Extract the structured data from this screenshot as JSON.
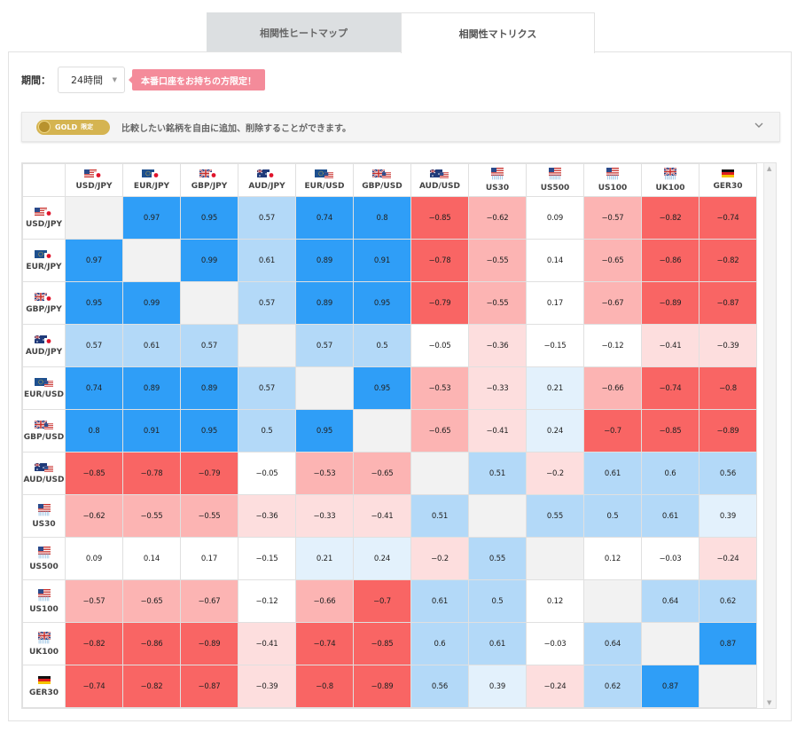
{
  "tabs": [
    {
      "label": "相関性ヒートマップ"
    },
    {
      "label": "相関性マトリクス"
    }
  ],
  "period": {
    "label": "期間：",
    "value": "24時間"
  },
  "real_account_badge": "本番口座をお持ちの方限定！",
  "gold": {
    "badge_text": "GOLD",
    "badge_sub": "限定",
    "message": "比較したい銘柄を自由に追加、削除することができます。"
  },
  "index_flag_sub": "|||||||",
  "symbols": [
    {
      "label": "USD/JPY",
      "flag_type": "pair",
      "flag1": "us",
      "flag2": "jp"
    },
    {
      "label": "EUR/JPY",
      "flag_type": "pair",
      "flag1": "eu",
      "flag2": "jp"
    },
    {
      "label": "GBP/JPY",
      "flag_type": "pair",
      "flag1": "uk",
      "flag2": "jp"
    },
    {
      "label": "AUD/JPY",
      "flag_type": "pair",
      "flag1": "au",
      "flag2": "jp"
    },
    {
      "label": "EUR/USD",
      "flag_type": "pair",
      "flag1": "eu",
      "flag2": "us"
    },
    {
      "label": "GBP/USD",
      "flag_type": "pair",
      "flag1": "uk",
      "flag2": "us"
    },
    {
      "label": "AUD/USD",
      "flag_type": "pair",
      "flag1": "au",
      "flag2": "us"
    },
    {
      "label": "US30",
      "flag_type": "index",
      "flag1": "us"
    },
    {
      "label": "US500",
      "flag_type": "index",
      "flag1": "us"
    },
    {
      "label": "US100",
      "flag_type": "index",
      "flag1": "us"
    },
    {
      "label": "UK100",
      "flag_type": "index",
      "flag1": "uk"
    },
    {
      "label": "GER30",
      "flag_type": "single",
      "flag1": "de"
    }
  ],
  "matrix": [
    [
      null,
      0.97,
      0.95,
      0.57,
      0.74,
      0.8,
      -0.85,
      -0.62,
      0.09,
      -0.57,
      -0.82,
      -0.74
    ],
    [
      0.97,
      null,
      0.99,
      0.61,
      0.89,
      0.91,
      -0.78,
      -0.55,
      0.14,
      -0.65,
      -0.86,
      -0.82
    ],
    [
      0.95,
      0.99,
      null,
      0.57,
      0.89,
      0.95,
      -0.79,
      -0.55,
      0.17,
      -0.67,
      -0.89,
      -0.87
    ],
    [
      0.57,
      0.61,
      0.57,
      null,
      0.57,
      0.5,
      -0.05,
      -0.36,
      -0.15,
      -0.12,
      -0.41,
      -0.39
    ],
    [
      0.74,
      0.89,
      0.89,
      0.57,
      null,
      0.95,
      -0.53,
      -0.33,
      0.21,
      -0.66,
      -0.74,
      -0.8
    ],
    [
      0.8,
      0.91,
      0.95,
      0.5,
      0.95,
      null,
      -0.65,
      -0.41,
      0.24,
      -0.7,
      -0.85,
      -0.89
    ],
    [
      -0.85,
      -0.78,
      -0.79,
      -0.05,
      -0.53,
      -0.65,
      null,
      0.51,
      -0.2,
      0.61,
      0.6,
      0.56
    ],
    [
      -0.62,
      -0.55,
      -0.55,
      -0.36,
      -0.33,
      -0.41,
      0.51,
      null,
      0.55,
      0.5,
      0.61,
      0.39
    ],
    [
      0.09,
      0.14,
      0.17,
      -0.15,
      0.21,
      0.24,
      -0.2,
      0.55,
      null,
      0.12,
      -0.03,
      -0.24
    ],
    [
      -0.57,
      -0.65,
      -0.67,
      -0.12,
      -0.66,
      -0.7,
      0.61,
      0.5,
      0.12,
      null,
      0.64,
      0.62
    ],
    [
      -0.82,
      -0.86,
      -0.89,
      -0.41,
      -0.74,
      -0.85,
      0.6,
      0.61,
      -0.03,
      0.64,
      null,
      0.87
    ],
    [
      -0.74,
      -0.82,
      -0.87,
      -0.39,
      -0.8,
      -0.89,
      0.56,
      0.39,
      -0.24,
      0.62,
      0.87,
      null
    ]
  ],
  "colors": {
    "pos_strong": "#2f9ef7",
    "pos_mid": "#b3d9f8",
    "pos_weak": "#e3f1fc",
    "neg_strong": "#f96564",
    "neg_mid": "#fcb4b3",
    "neg_weak": "#fddede",
    "neutral": "#ffffff",
    "diagonal": "#f2f2f2"
  }
}
